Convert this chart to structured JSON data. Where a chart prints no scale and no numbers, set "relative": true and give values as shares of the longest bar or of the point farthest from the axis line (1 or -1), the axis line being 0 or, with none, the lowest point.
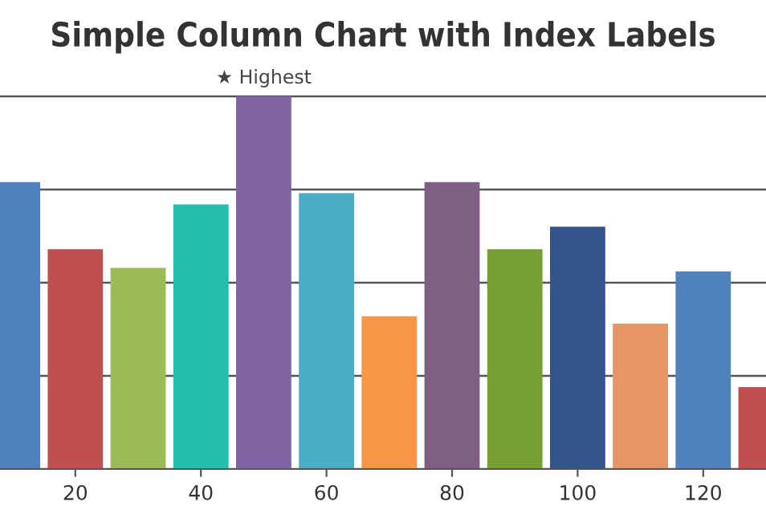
{
  "chart_data": {
    "type": "bar",
    "title": "Simple Column Chart with Index Labels",
    "relative": true,
    "x": [
      10,
      20,
      30,
      40,
      50,
      60,
      70,
      80,
      90,
      100,
      110,
      120,
      130
    ],
    "values": [
      0.77,
      0.59,
      0.54,
      0.71,
      1,
      0.74,
      0.41,
      0.77,
      0.59,
      0.65,
      0.39,
      0.53,
      0.22
    ],
    "colors": [
      "#4f81bc",
      "#c0504e",
      "#9bbb58",
      "#23bfaa",
      "#8064a1",
      "#4aacc5",
      "#f79647",
      "#7f6084",
      "#77a033",
      "#33558b",
      "#e59566",
      "#4f81bc",
      "#c0504e"
    ],
    "xlim": [
      8,
      130
    ],
    "xticks": [
      20,
      40,
      60,
      80,
      100,
      120
    ],
    "grid": "y",
    "tick_labels": "x",
    "annotations": [
      {
        "text": "★ Highest",
        "x": 50,
        "y": 1
      }
    ]
  }
}
